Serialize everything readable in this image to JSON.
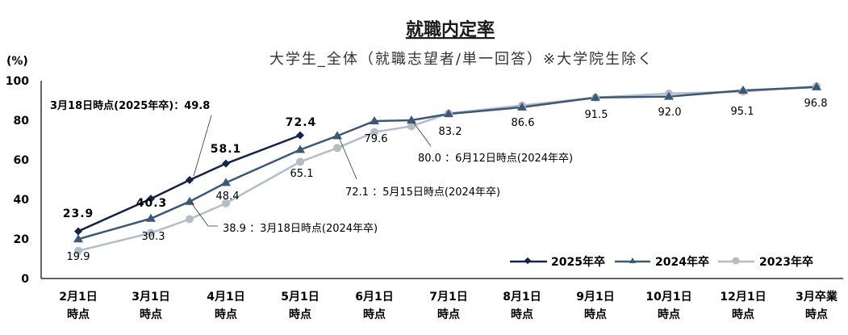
{
  "chart_data": {
    "type": "line",
    "title": "就職内定率",
    "subtitle": "大学生_全体（就職志望者/単一回答）※大学院生除く",
    "ylabel": "(%)",
    "xlabel": "",
    "ylim": [
      0,
      100
    ],
    "yticks": [
      "0",
      "20",
      "40",
      "60",
      "80",
      "100"
    ],
    "categories": [
      [
        "2月1日",
        "時点"
      ],
      [
        "3月1日",
        "時点"
      ],
      [
        "4月1日",
        "時点"
      ],
      [
        "5月1日",
        "時点"
      ],
      [
        "6月1日",
        "時点"
      ],
      [
        "7月1日",
        "時点"
      ],
      [
        "8月1日",
        "時点"
      ],
      [
        "9月1日",
        "時点"
      ],
      [
        "10月1日",
        "時点"
      ],
      [
        "12月1日",
        "時点"
      ],
      [
        "3月卒業",
        "時点"
      ]
    ],
    "series": [
      {
        "name": "2025年卒",
        "color": "#14234a",
        "marker": "diamond",
        "points": [
          {
            "x": "2月1日",
            "y": 23.9
          },
          {
            "x": "3月1日",
            "y": 40.3
          },
          {
            "x": "3月18日",
            "y": 49.8
          },
          {
            "x": "4月1日",
            "y": 58.1
          },
          {
            "x": "5月1日",
            "y": 72.4
          }
        ]
      },
      {
        "name": "2024年卒",
        "color": "#3b5878",
        "marker": "triangle",
        "points": [
          {
            "x": "2月1日",
            "y": 19.9
          },
          {
            "x": "3月1日",
            "y": 30.3
          },
          {
            "x": "3月18日",
            "y": 38.9
          },
          {
            "x": "4月1日",
            "y": 48.4
          },
          {
            "x": "5月1日",
            "y": 65.1
          },
          {
            "x": "5月15日",
            "y": 72.1
          },
          {
            "x": "6月1日",
            "y": 79.6
          },
          {
            "x": "6月12日",
            "y": 80.0
          },
          {
            "x": "7月1日",
            "y": 83.2
          },
          {
            "x": "8月1日",
            "y": 86.6
          },
          {
            "x": "9月1日",
            "y": 91.5
          },
          {
            "x": "10月1日",
            "y": 92.0
          },
          {
            "x": "12月1日",
            "y": 95.1
          },
          {
            "x": "3月卒業",
            "y": 96.8
          }
        ]
      },
      {
        "name": "2023年卒",
        "color": "#b4bcc6",
        "marker": "circle",
        "points": [
          {
            "x": "2月1日",
            "y": 14.0
          },
          {
            "x": "3月1日",
            "y": 23.0
          },
          {
            "x": "3月18日",
            "y": 30.0
          },
          {
            "x": "4月1日",
            "y": 38.0
          },
          {
            "x": "5月1日",
            "y": 59.0
          },
          {
            "x": "5月15日",
            "y": 66.0
          },
          {
            "x": "6月1日",
            "y": 74.0
          },
          {
            "x": "6月12日",
            "y": 77.0
          },
          {
            "x": "7月1日",
            "y": 83.5
          },
          {
            "x": "8月1日",
            "y": 87.5
          },
          {
            "x": "9月1日",
            "y": 91.5
          },
          {
            "x": "10月1日",
            "y": 93.5
          },
          {
            "x": "12月1日",
            "y": 94.5
          },
          {
            "x": "3月卒業",
            "y": 97.2
          }
        ]
      }
    ],
    "data_labels": {
      "s2025": [
        "23.9",
        "40.3",
        "58.1",
        "72.4"
      ],
      "s2024": [
        "19.9",
        "30.3",
        "48.4",
        "65.1",
        "79.6",
        "83.2",
        "86.6",
        "91.5",
        "92.0",
        "95.1",
        "96.8"
      ]
    },
    "annotations": [
      "3月18日時点(2025年卒)：49.8",
      "38.9 ：3月18日時点(2024年卒)",
      "72.1 ：5月15日時点(2024年卒)",
      "80.0 ：6月12日時点(2024年卒)"
    ],
    "legend": [
      "2025年卒",
      "2024年卒",
      "2023年卒"
    ],
    "legend_position": "bottom-right",
    "grid": false
  }
}
